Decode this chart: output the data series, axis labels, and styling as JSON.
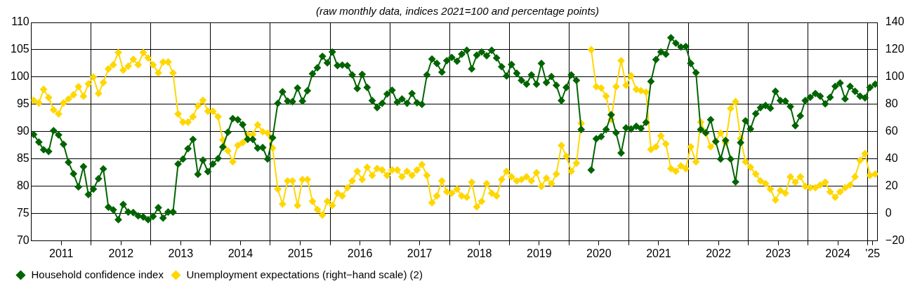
{
  "chart_data": {
    "type": "line",
    "subtitle": "(raw monthly data, indices 2021=100 and percentage points)",
    "x": [
      "2011-01-15",
      "2011-02-15",
      "2011-03-15",
      "2011-04-15",
      "2011-05-15",
      "2011-06-15",
      "2011-07-15",
      "2011-08-15",
      "2011-09-15",
      "2011-10-15",
      "2011-11-15",
      "2011-12-15",
      "2012-01-15",
      "2012-02-15",
      "2012-03-15",
      "2012-04-15",
      "2012-05-15",
      "2012-06-15",
      "2012-07-15",
      "2012-08-15",
      "2012-09-15",
      "2012-10-15",
      "2012-11-15",
      "2012-12-15",
      "2013-01-15",
      "2013-02-15",
      "2013-03-15",
      "2013-04-15",
      "2013-05-15",
      "2013-06-15",
      "2013-07-15",
      "2013-08-15",
      "2013-09-15",
      "2013-10-15",
      "2013-11-15",
      "2013-12-15",
      "2014-01-15",
      "2014-02-15",
      "2014-03-15",
      "2014-04-15",
      "2014-05-15",
      "2014-06-15",
      "2014-07-15",
      "2014-08-15",
      "2014-09-15",
      "2014-10-15",
      "2014-11-15",
      "2014-12-15",
      "2015-01-15",
      "2015-02-15",
      "2015-03-15",
      "2015-04-15",
      "2015-05-15",
      "2015-06-15",
      "2015-07-15",
      "2015-08-15",
      "2015-09-15",
      "2015-10-15",
      "2015-11-15",
      "2015-12-15",
      "2016-01-15",
      "2016-02-15",
      "2016-03-15",
      "2016-04-15",
      "2016-05-15",
      "2016-06-15",
      "2016-07-15",
      "2016-08-15",
      "2016-09-15",
      "2016-10-15",
      "2016-11-15",
      "2016-12-15",
      "2017-01-15",
      "2017-02-15",
      "2017-03-15",
      "2017-04-15",
      "2017-05-15",
      "2017-06-15",
      "2017-07-15",
      "2017-08-15",
      "2017-09-15",
      "2017-10-15",
      "2017-11-15",
      "2017-12-15",
      "2018-01-15",
      "2018-02-15",
      "2018-03-15",
      "2018-04-15",
      "2018-05-15",
      "2018-06-15",
      "2018-07-15",
      "2018-08-15",
      "2018-09-15",
      "2018-10-15",
      "2018-11-15",
      "2018-12-15",
      "2019-01-15",
      "2019-02-15",
      "2019-03-15",
      "2019-04-15",
      "2019-05-15",
      "2019-06-15",
      "2019-07-15",
      "2019-08-15",
      "2019-09-15",
      "2019-10-15",
      "2019-11-15",
      "2019-12-15",
      "2020-01-15",
      "2020-02-15",
      "2020-03-15",
      "2020-04-15",
      "2020-05-15",
      "2020-06-15",
      "2020-07-15",
      "2020-08-15",
      "2020-09-15",
      "2020-10-15",
      "2020-11-15",
      "2020-12-15",
      "2021-01-15",
      "2021-02-15",
      "2021-03-15",
      "2021-04-15",
      "2021-05-15",
      "2021-06-15",
      "2021-07-15",
      "2021-08-15",
      "2021-09-15",
      "2021-10-15",
      "2021-11-15",
      "2021-12-15",
      "2022-01-15",
      "2022-02-15",
      "2022-03-15",
      "2022-04-15",
      "2022-05-15",
      "2022-06-15",
      "2022-07-15",
      "2022-08-15",
      "2022-09-15",
      "2022-10-15",
      "2022-11-15",
      "2022-12-15",
      "2023-01-15",
      "2023-02-15",
      "2023-03-15",
      "2023-04-15",
      "2023-05-15",
      "2023-06-15",
      "2023-07-15",
      "2023-08-15",
      "2023-09-15",
      "2023-10-15",
      "2023-11-15",
      "2023-12-15",
      "2024-01-15",
      "2024-02-15",
      "2024-03-15",
      "2024-04-15",
      "2024-05-15",
      "2024-06-15",
      "2024-07-15",
      "2024-08-15",
      "2024-09-15",
      "2024-10-15",
      "2024-11-15",
      "2024-12-15",
      "2025-01-15",
      "2025-02-15"
    ],
    "series": [
      {
        "name": "Household confidence index",
        "color": "#006400",
        "values": [
          89.5,
          88.1,
          86.7,
          86.4,
          90.2,
          89.4,
          87.7,
          84.4,
          82.3,
          79.9,
          83.6,
          78.5,
          79.5,
          81.4,
          83.2,
          76.2,
          75.7,
          73.9,
          76.7,
          75.3,
          75.2,
          74.6,
          74.4,
          73.9,
          74.5,
          76.1,
          74.2,
          75.3,
          75.3,
          84.1,
          85.0,
          86.9,
          88.6,
          82.2,
          84.8,
          82.7,
          84.1,
          85.1,
          87.2,
          89.9,
          92.4,
          92.2,
          91.3,
          88.6,
          88.6,
          87.0,
          87.1,
          85.0,
          88.9,
          95.2,
          97.3,
          95.6,
          95.5,
          98.0,
          95.6,
          97.5,
          100.6,
          101.7,
          103.8,
          102.6,
          104.6,
          102.1,
          102.2,
          102.1,
          100.4,
          97.9,
          100.5,
          98.1,
          95.7,
          94.4,
          95.2,
          96.9,
          97.6,
          95.4,
          96.0,
          95.2,
          97.0,
          95.3,
          95.0,
          100.4,
          103.3,
          102.5,
          100.9,
          103.0,
          103.6,
          102.9,
          104.2,
          104.9,
          101.5,
          104.0,
          104.6,
          103.9,
          104.9,
          103.5,
          101.9,
          100.2,
          102.3,
          100.7,
          99.4,
          98.7,
          100.4,
          98.7,
          102.5,
          99.0,
          100.1,
          98.5,
          95.7,
          98.1,
          100.4,
          99.4,
          90.4,
          null,
          83.0,
          88.7,
          89.1,
          90.4,
          93.1,
          89.8,
          86.1,
          90.7,
          90.5,
          91.0,
          90.6,
          91.7,
          99.2,
          103.2,
          104.6,
          104.2,
          107.2,
          106.2,
          105.5,
          105.6,
          102.5,
          100.8,
          90.4,
          89.8,
          92.2,
          88.2,
          85.0,
          88.4,
          85.0,
          80.8,
          88.0,
          92.0,
          90.5,
          93.3,
          94.4,
          94.8,
          94.3,
          97.4,
          95.7,
          95.6,
          94.6,
          91.1,
          92.9,
          95.7,
          96.3,
          97.0,
          96.5,
          95.1,
          96.3,
          98.3,
          98.9,
          96.0,
          98.3,
          97.4,
          96.5,
          96.2,
          98.1,
          98.7
        ]
      },
      {
        "name": "Unemployment expectations (right−hand scale) (2)",
        "color": "#ffd700",
        "axis": "y2",
        "values": [
          83,
          81,
          91,
          85,
          76,
          73,
          81,
          84,
          87,
          93,
          86,
          95,
          100,
          88,
          96,
          106,
          109,
          118,
          105,
          108,
          113,
          109,
          118,
          114,
          109,
          103,
          111,
          111,
          103,
          73,
          67,
          67,
          71,
          79,
          83,
          75,
          75,
          71,
          54,
          46,
          38,
          50,
          52,
          58,
          58,
          65,
          60,
          59,
          48,
          18,
          7,
          24,
          24,
          6,
          25,
          25,
          9,
          3,
          -1,
          9,
          6,
          15,
          13,
          19,
          24,
          31,
          25,
          34,
          28,
          33,
          32,
          28,
          32,
          32,
          27,
          31,
          28,
          32,
          36,
          28,
          8,
          13,
          24,
          16,
          15,
          18,
          13,
          12,
          23,
          5,
          9,
          22,
          15,
          13,
          25,
          31,
          27,
          24,
          25,
          27,
          24,
          30,
          20,
          26,
          22,
          29,
          50,
          42,
          31,
          37,
          66,
          null,
          120,
          93,
          92,
          86,
          69,
          93,
          112,
          94,
          101,
          91,
          90,
          89,
          47,
          49,
          57,
          51,
          33,
          31,
          35,
          33,
          49,
          38,
          67,
          59,
          49,
          53,
          59,
          52,
          77,
          82,
          55,
          38,
          34,
          29,
          24,
          22,
          18,
          10,
          17,
          15,
          27,
          23,
          27,
          20,
          19,
          19,
          21,
          23,
          16,
          12,
          16,
          19,
          21,
          27,
          39,
          44,
          28,
          29
        ]
      }
    ],
    "xlim": [
      "2011-01",
      "2025-03"
    ],
    "xticks": [
      {
        "value": "2011-07",
        "label": "2011"
      },
      {
        "value": "2012-01",
        "label": null
      },
      {
        "value": "2012-07",
        "label": "2012"
      },
      {
        "value": "2013-01",
        "label": null
      },
      {
        "value": "2013-07",
        "label": "2013"
      },
      {
        "value": "2014-01",
        "label": null
      },
      {
        "value": "2014-07",
        "label": "2014"
      },
      {
        "value": "2015-01",
        "label": null
      },
      {
        "value": "2015-07",
        "label": "2015"
      },
      {
        "value": "2016-01",
        "label": null
      },
      {
        "value": "2016-07",
        "label": "2016"
      },
      {
        "value": "2017-01",
        "label": null
      },
      {
        "value": "2017-07",
        "label": "2017"
      },
      {
        "value": "2018-01",
        "label": null
      },
      {
        "value": "2018-07",
        "label": "2018"
      },
      {
        "value": "2019-01",
        "label": null
      },
      {
        "value": "2019-07",
        "label": "2019"
      },
      {
        "value": "2020-01",
        "label": null
      },
      {
        "value": "2020-07",
        "label": "2020"
      },
      {
        "value": "2021-01",
        "label": null
      },
      {
        "value": "2021-07",
        "label": "2021"
      },
      {
        "value": "2022-01",
        "label": null
      },
      {
        "value": "2022-07",
        "label": "2022"
      },
      {
        "value": "2023-01",
        "label": null
      },
      {
        "value": "2023-07",
        "label": "2023"
      },
      {
        "value": "2024-01",
        "label": null
      },
      {
        "value": "2024-07",
        "label": "2024"
      },
      {
        "value": "2025-01",
        "label": null
      },
      {
        "value": "2025-02",
        "label": "'25"
      }
    ],
    "ylim": [
      70,
      110
    ],
    "yticks": [
      70,
      75,
      80,
      85,
      90,
      95,
      100,
      105,
      110
    ],
    "y2lim": [
      -20,
      140
    ],
    "y2ticks": [
      {
        "value": -20,
        "label": "−20"
      },
      0,
      20,
      40,
      60,
      80,
      100,
      120,
      140
    ],
    "grid": true,
    "legend": "bottom left",
    "marker": "diamond",
    "line_style": "solid"
  }
}
